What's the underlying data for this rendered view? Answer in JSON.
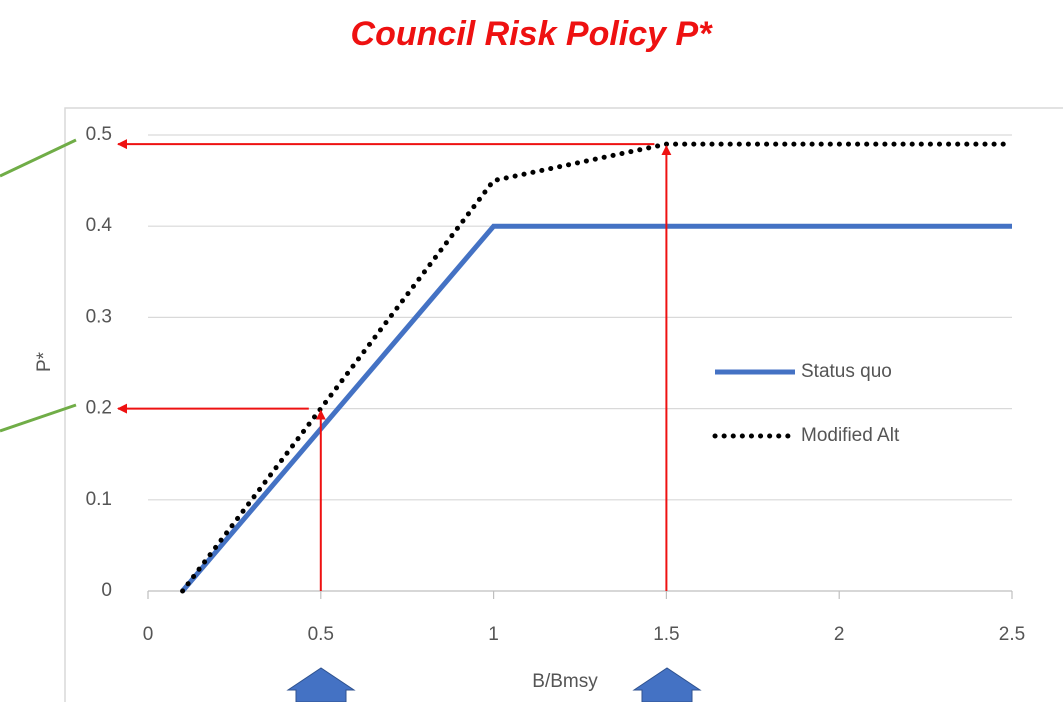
{
  "chart_data": {
    "type": "line",
    "title": "Council Risk Policy P*",
    "x_label": "B/Bmsy",
    "y_label": "P*",
    "xlim": [
      0,
      2.5
    ],
    "xticks": [
      0,
      0.5,
      1,
      1.5,
      2,
      2.5
    ],
    "ylim": [
      0,
      0.5
    ],
    "yticks": [
      0,
      0.1,
      0.2,
      0.3,
      0.4,
      0.5
    ],
    "grid": true,
    "legend": "right",
    "series": [
      {
        "name": "Status quo",
        "color": "#4472c4",
        "line_style": "solid",
        "x": [
          0.1,
          1,
          2.5
        ],
        "values": [
          0,
          0.4,
          0.4
        ]
      },
      {
        "name": "Modified Alt",
        "color": "#000000",
        "line_style": "dotted",
        "x": [
          0.1,
          0.5,
          1,
          1.5,
          2.5
        ],
        "values": [
          0,
          0.2,
          0.45,
          0.49,
          0.49
        ]
      }
    ]
  }
}
